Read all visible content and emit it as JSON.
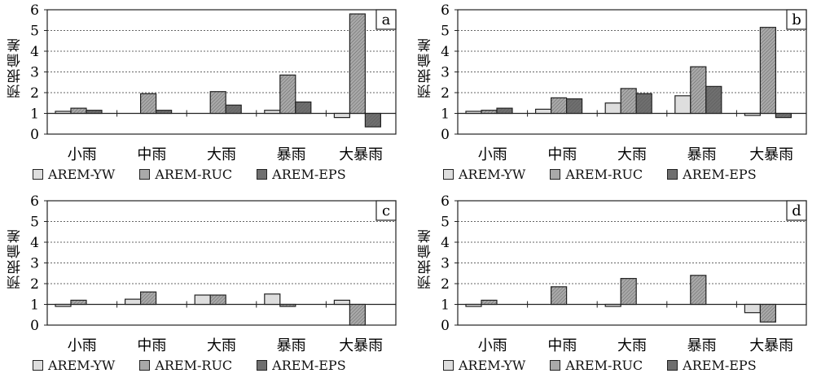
{
  "chart_data": [
    {
      "type": "bar",
      "panel_label": "a",
      "ylabel": "预报偏差",
      "categories": [
        "小雨",
        "中雨",
        "大雨",
        "暴雨",
        "大暴雨"
      ],
      "ylim": [
        0,
        6
      ],
      "baseline": 1,
      "series": [
        {
          "name": "AREM-YW",
          "values": [
            1.1,
            null,
            null,
            1.15,
            0.8
          ]
        },
        {
          "name": "AREM-RUC",
          "values": [
            1.25,
            1.95,
            2.05,
            2.85,
            5.8
          ]
        },
        {
          "name": "AREM-EPS",
          "values": [
            1.15,
            1.15,
            1.4,
            1.55,
            0.35
          ]
        }
      ]
    },
    {
      "type": "bar",
      "panel_label": "b",
      "ylabel": "预报偏差",
      "categories": [
        "小雨",
        "中雨",
        "大雨",
        "暴雨",
        "大暴雨"
      ],
      "ylim": [
        0,
        6
      ],
      "baseline": 1,
      "series": [
        {
          "name": "AREM-YW",
          "values": [
            1.1,
            1.2,
            1.5,
            1.85,
            0.9
          ]
        },
        {
          "name": "AREM-RUC",
          "values": [
            1.15,
            1.75,
            2.2,
            3.25,
            5.15
          ]
        },
        {
          "name": "AREM-EPS",
          "values": [
            1.25,
            1.7,
            1.95,
            2.3,
            0.8
          ]
        }
      ]
    },
    {
      "type": "bar",
      "panel_label": "c",
      "ylabel": "预报偏差",
      "categories": [
        "小雨",
        "中雨",
        "大雨",
        "暴雨",
        "大暴雨"
      ],
      "ylim": [
        0,
        6
      ],
      "baseline": 1,
      "series": [
        {
          "name": "AREM-YW",
          "values": [
            1.0,
            1.25,
            1.45,
            1.5,
            1.2
          ]
        },
        {
          "name": "AREM-RUC",
          "values": [
            1.2,
            1.6,
            1.45,
            1.0,
            0.0
          ]
        },
        {
          "name": "AREM-EPS",
          "values": [
            null,
            null,
            null,
            null,
            null
          ]
        }
      ]
    },
    {
      "type": "bar",
      "panel_label": "d",
      "ylabel": "预报偏差",
      "categories": [
        "小雨",
        "中雨",
        "大雨",
        "暴雨",
        "大暴雨"
      ],
      "ylim": [
        0,
        6
      ],
      "baseline": 1,
      "series": [
        {
          "name": "AREM-YW",
          "values": [
            0.9,
            null,
            1.0,
            null,
            0.6
          ]
        },
        {
          "name": "AREM-RUC",
          "values": [
            1.2,
            1.85,
            2.25,
            2.4,
            0.15
          ]
        },
        {
          "name": "AREM-EPS",
          "values": [
            null,
            null,
            null,
            null,
            null
          ]
        }
      ]
    }
  ],
  "colors": {
    "AREM-YW": "#dedede",
    "AREM-RUC": "#a9a9a9",
    "AREM-EPS": "#6f6f6f"
  },
  "legend": [
    {
      "label": "AREM-YW",
      "key": "yw"
    },
    {
      "label": "AREM-RUC",
      "key": "ruc"
    },
    {
      "label": "AREM-EPS",
      "key": "eps"
    }
  ],
  "yticks": [
    "0",
    "1",
    "2",
    "3",
    "4",
    "5",
    "6"
  ]
}
